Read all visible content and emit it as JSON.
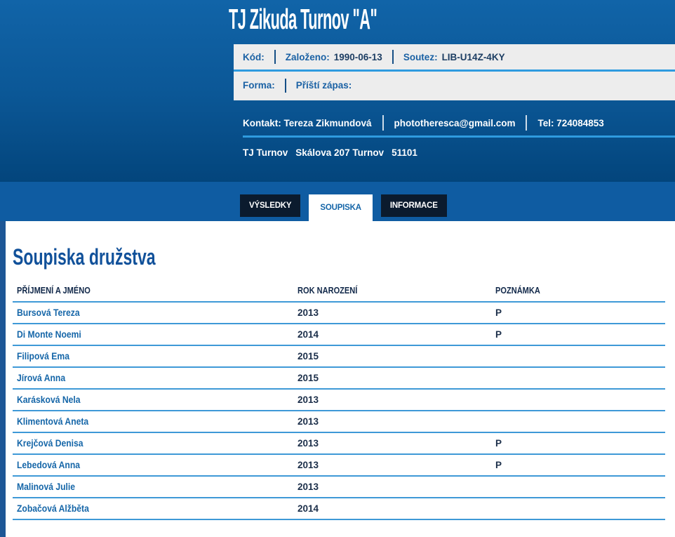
{
  "header": {
    "title": "TJ Zikuda Turnov \"A\"",
    "info": {
      "kod_label": "Kód:",
      "zalozeno_label": "Založeno:",
      "zalozeno_value": "1990-06-13",
      "soutez_label": "Soutez:",
      "soutez_value": "LIB-U14Z-4KY",
      "forma_label": "Forma:",
      "pristi_zapas_label": "Příští zápas:"
    },
    "contact": {
      "kontakt": "Kontakt: Tereza Zikmundová",
      "email": "phototheresca@gmail.com",
      "tel": "Tel: 724084853"
    },
    "address": {
      "club": "TJ Turnov",
      "street": "Skálova 207 Turnov",
      "zip": "51101"
    }
  },
  "tabs": [
    {
      "label": "VÝSLEDKY",
      "active": false
    },
    {
      "label": "SOUPISKA",
      "active": true
    },
    {
      "label": "INFORMACE",
      "active": false
    }
  ],
  "main": {
    "heading": "Soupiska družstva",
    "table": {
      "columns": [
        "PŘÍJMENÍ A JMÉNO",
        "ROK NAROZENÍ",
        "POZNÁMKA"
      ],
      "rows": [
        {
          "name": "Bursová Tereza",
          "year": "2013",
          "note": "P"
        },
        {
          "name": "Di Monte Noemi",
          "year": "2014",
          "note": "P"
        },
        {
          "name": "Filipová Ema",
          "year": "2015",
          "note": ""
        },
        {
          "name": "Jírová Anna",
          "year": "2015",
          "note": ""
        },
        {
          "name": "Karásková Nela",
          "year": "2013",
          "note": ""
        },
        {
          "name": "Klimentová Aneta",
          "year": "2013",
          "note": ""
        },
        {
          "name": "Krejčová Denisa",
          "year": "2013",
          "note": "P"
        },
        {
          "name": "Lebedová Anna",
          "year": "2013",
          "note": "P"
        },
        {
          "name": "Malinová Julie",
          "year": "2013",
          "note": ""
        },
        {
          "name": "Zobačová Alžběta",
          "year": "2014",
          "note": ""
        }
      ]
    }
  },
  "colors": {
    "header_gradient_top": "#1164a8",
    "header_gradient_bottom": "#03457c",
    "tab_band": "#0f5ca2",
    "tab_dark": "#0b1b2e",
    "accent_line": "#2f9bdf",
    "table_line": "#3e99d7",
    "link_blue": "#1566a8",
    "info_box_bg": "#ededed",
    "dark_navy_text": "#1c2f4a"
  }
}
